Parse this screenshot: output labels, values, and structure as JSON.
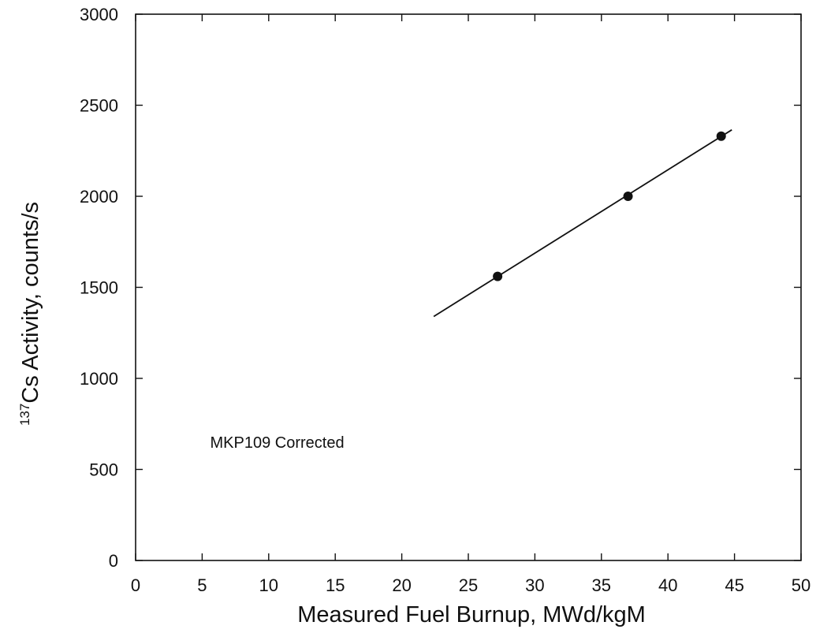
{
  "chart_data": {
    "type": "scatter",
    "title": "",
    "xlabel": "Measured Fuel Burnup, MWd/kgM",
    "ylabel": {
      "superscript": "137",
      "text": "Cs Activity, counts/s"
    },
    "xlim": [
      0,
      50
    ],
    "ylim": [
      0,
      3000
    ],
    "x_ticks": [
      0,
      5,
      10,
      15,
      20,
      25,
      30,
      35,
      40,
      45,
      50
    ],
    "x_tick_labels": [
      "0",
      "5",
      "10",
      "15",
      "20",
      "25",
      "30",
      "35",
      "40",
      "45",
      "50"
    ],
    "y_ticks": [
      0,
      500,
      1000,
      1500,
      2000,
      2500,
      3000
    ],
    "y_tick_labels": [
      "0",
      "500",
      "1000",
      "1500",
      "2000",
      "2500",
      "3000"
    ],
    "grid": false,
    "series": [
      {
        "kind": "points",
        "x": [
          27.2,
          37.0,
          44.0
        ],
        "y": [
          1560,
          2000,
          2330
        ]
      },
      {
        "kind": "fit-line",
        "x": [
          22.4,
          44.8
        ],
        "y": [
          1340,
          2365
        ]
      }
    ],
    "annotations": [
      {
        "text": "MKP109 Corrected",
        "x": 5.6,
        "y": 620
      }
    ],
    "colors": {
      "ink": "#111111",
      "background": "#ffffff"
    }
  }
}
